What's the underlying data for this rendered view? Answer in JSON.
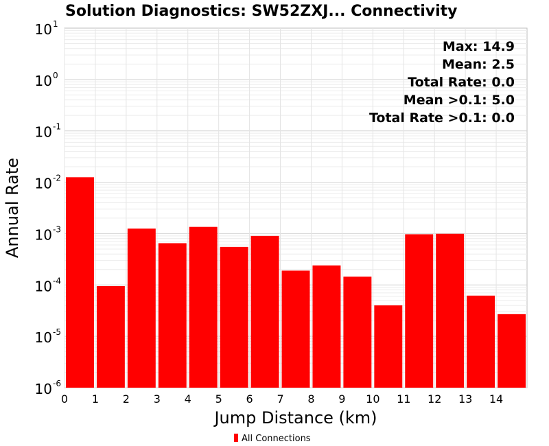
{
  "chart_data": {
    "type": "bar",
    "title": "Solution Diagnostics: SW52ZXJ... Connectivity",
    "xlabel": "Jump Distance (km)",
    "ylabel": "Annual Rate",
    "yscale": "log",
    "ylim": [
      1e-06,
      10
    ],
    "xlim": [
      0,
      15
    ],
    "x_ticks": [
      "0",
      "1",
      "2",
      "3",
      "4",
      "5",
      "6",
      "7",
      "8",
      "9",
      "10",
      "11",
      "12",
      "13",
      "14"
    ],
    "y_ticks": [
      {
        "base": "10",
        "exp": "1"
      },
      {
        "base": "10",
        "exp": "0"
      },
      {
        "base": "10",
        "exp": "-1"
      },
      {
        "base": "10",
        "exp": "-2"
      },
      {
        "base": "10",
        "exp": "-3"
      },
      {
        "base": "10",
        "exp": "-4"
      },
      {
        "base": "10",
        "exp": "-5"
      },
      {
        "base": "10",
        "exp": "-6"
      }
    ],
    "bins": [
      {
        "x0": 0,
        "x1": 1,
        "value": 0.0125
      },
      {
        "x0": 1,
        "x1": 2,
        "value": 9.5e-05
      },
      {
        "x0": 2,
        "x1": 3,
        "value": 0.00125
      },
      {
        "x0": 3,
        "x1": 4,
        "value": 0.00065
      },
      {
        "x0": 4,
        "x1": 5,
        "value": 0.00135
      },
      {
        "x0": 5,
        "x1": 6,
        "value": 0.00055
      },
      {
        "x0": 6,
        "x1": 7,
        "value": 0.0009
      },
      {
        "x0": 7,
        "x1": 8,
        "value": 0.00019
      },
      {
        "x0": 8,
        "x1": 9,
        "value": 0.00024
      },
      {
        "x0": 9,
        "x1": 10,
        "value": 0.000145
      },
      {
        "x0": 10,
        "x1": 11,
        "value": 4e-05
      },
      {
        "x0": 11,
        "x1": 12,
        "value": 0.00097
      },
      {
        "x0": 12,
        "x1": 13,
        "value": 0.00099
      },
      {
        "x0": 13,
        "x1": 14,
        "value": 6.2e-05
      },
      {
        "x0": 14,
        "x1": 15,
        "value": 2.7e-05
      }
    ],
    "series": [
      {
        "name": "All Connections",
        "color": "#ff0000"
      }
    ],
    "stats": [
      "Max: 14.9",
      "Mean: 2.5",
      "Total Rate: 0.0",
      "Mean >0.1: 5.0",
      "Total Rate >0.1: 0.0"
    ],
    "grid": true,
    "legend_position": "bottom-center"
  }
}
